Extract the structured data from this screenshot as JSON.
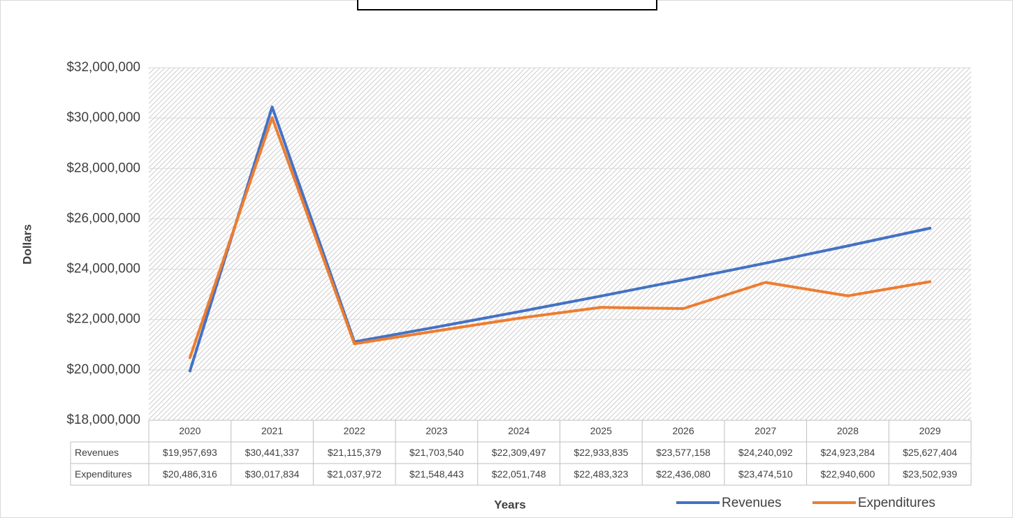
{
  "chart_data": {
    "type": "line",
    "x_label": "Years",
    "y_label": "Dollars",
    "categories": [
      "2020",
      "2021",
      "2022",
      "2023",
      "2024",
      "2025",
      "2026",
      "2027",
      "2028",
      "2029"
    ],
    "series": [
      {
        "name": "Revenues",
        "color": "#4472c4",
        "values": [
          19957693,
          30441337,
          21115379,
          21703540,
          22309497,
          22933835,
          23577158,
          24240092,
          24923284,
          25627404
        ],
        "value_labels": [
          "$19,957,693",
          "$30,441,337",
          "$21,115,379",
          "$21,703,540",
          "$22,309,497",
          "$22,933,835",
          "$23,577,158",
          "$24,240,092",
          "$24,923,284",
          "$25,627,404"
        ]
      },
      {
        "name": "Expenditures",
        "color": "#ed7d31",
        "values": [
          20486316,
          30017834,
          21037972,
          21548443,
          22051748,
          22483323,
          22436080,
          23474510,
          22940600,
          23502939
        ],
        "value_labels": [
          "$20,486,316",
          "$30,017,834",
          "$21,037,972",
          "$21,548,443",
          "$22,051,748",
          "$22,483,323",
          "$22,436,080",
          "$23,474,510",
          "$22,940,600",
          "$23,502,939"
        ]
      }
    ],
    "ylim": [
      18000000,
      32000000
    ],
    "yticks": [
      {
        "value": 18000000,
        "label": "$18,000,000"
      },
      {
        "value": 20000000,
        "label": "$20,000,000"
      },
      {
        "value": 22000000,
        "label": "$22,000,000"
      },
      {
        "value": 24000000,
        "label": "$24,000,000"
      },
      {
        "value": 26000000,
        "label": "$26,000,000"
      },
      {
        "value": 28000000,
        "label": "$28,000,000"
      },
      {
        "value": 30000000,
        "label": "$30,000,000"
      },
      {
        "value": 32000000,
        "label": "$32,000,000"
      }
    ],
    "grid": true,
    "legend": "bottom-right"
  }
}
